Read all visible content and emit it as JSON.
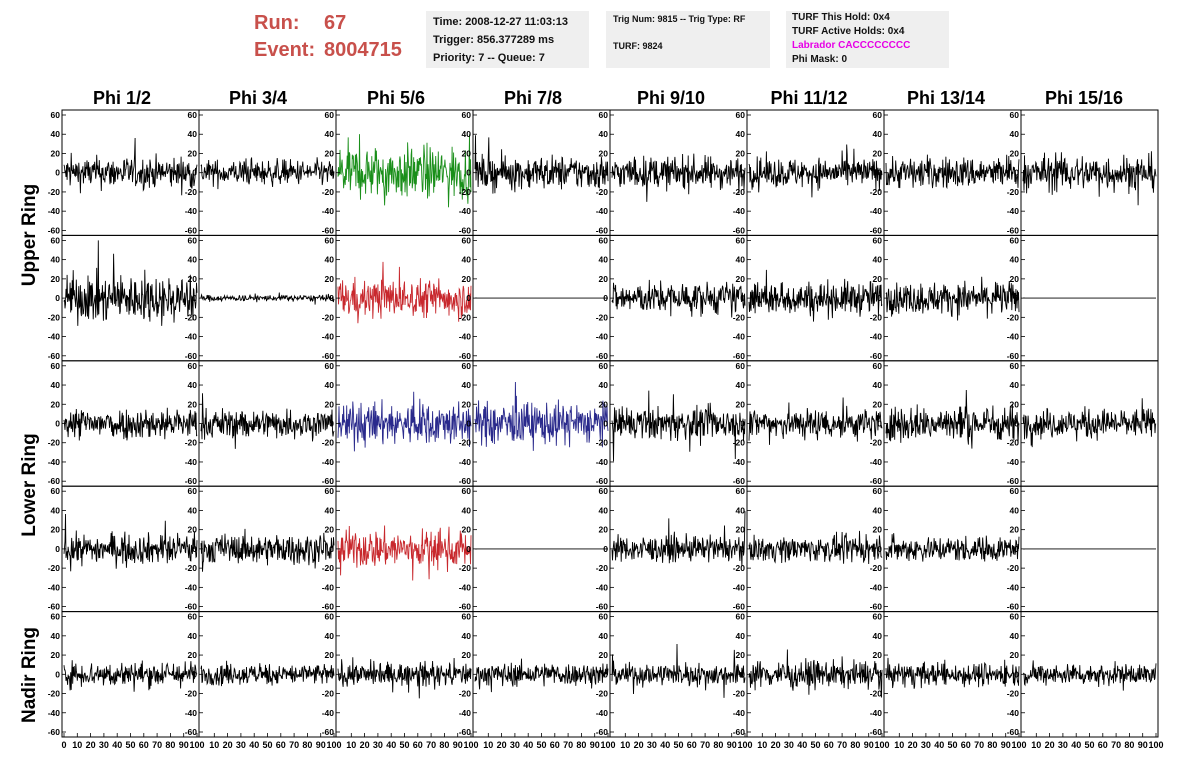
{
  "header": {
    "run_label": "Run:",
    "run_value": "67",
    "event_label": "Event:",
    "event_value": "8004715",
    "time": "Time: 2008-12-27 11:03:13",
    "trigger": "Trigger: 856.377289 ms",
    "priority": "Priority: 7 -- Queue: 7",
    "trig_num": "Trig Num: 9815 -- Trig Type: RF",
    "turf": "TURF: 9824",
    "turf_this_hold": "TURF This Hold: 0x4",
    "turf_active_holds": "TURF Active Holds: 0x4",
    "labrador": "Labrador CACCCCCCCC",
    "phi_mask": "Phi Mask: 0"
  },
  "colors": {
    "run_text": "#c8504b",
    "info_bg": "#efefef",
    "labrador": "#e600e6",
    "trace_black": "#000000",
    "trace_green": "#1a8f1a",
    "trace_red": "#c8282d",
    "trace_blue": "#2a2a8c"
  },
  "phi_columns": [
    "Phi 1/2",
    "Phi 3/4",
    "Phi 5/6",
    "Phi 7/8",
    "Phi 9/10",
    "Phi 11/12",
    "Phi 13/14",
    "Phi 15/16"
  ],
  "ring_labels": [
    "Upper Ring",
    "Lower Ring",
    "Nadir Ring"
  ],
  "y_ticks": [
    "60",
    "40",
    "20",
    "0",
    "-20",
    "-40",
    "-60"
  ],
  "x_ticks_first": [
    "0",
    "10",
    "20",
    "30",
    "40",
    "50",
    "60",
    "70",
    "80",
    "90",
    "100"
  ],
  "x_ticks_other": [
    "10",
    "20",
    "30",
    "40",
    "50",
    "60",
    "70",
    "80",
    "90",
    "100"
  ],
  "chart_data": {
    "type": "line",
    "description_of_axes": "Each panel is a waveform trace; x from 0 to 100, y from -60 to 60",
    "xlim": [
      0,
      100
    ],
    "ylim": [
      -60,
      60
    ],
    "rows": [
      {
        "ring": "Upper Ring",
        "channels": [
          {
            "color": "black",
            "amp": 15,
            "flat": false
          },
          {
            "color": "black",
            "amp": 12,
            "flat": false
          },
          {
            "color": "green",
            "amp": 25,
            "flat": false
          },
          {
            "color": "black",
            "amp": 16,
            "flat": false
          },
          {
            "color": "black",
            "amp": 15,
            "flat": false
          },
          {
            "color": "black",
            "amp": 14,
            "flat": false
          },
          {
            "color": "black",
            "amp": 15,
            "flat": false
          },
          {
            "color": "black",
            "amp": 17,
            "flat": false
          }
        ]
      },
      {
        "ring": "Upper Ring",
        "channels": [
          {
            "color": "black",
            "amp": 22,
            "flat": false
          },
          {
            "color": "black",
            "amp": 3,
            "flat": false
          },
          {
            "color": "red",
            "amp": 18,
            "flat": false
          },
          {
            "color": "black",
            "amp": 0,
            "flat": true
          },
          {
            "color": "black",
            "amp": 15,
            "flat": false
          },
          {
            "color": "black",
            "amp": 16,
            "flat": false
          },
          {
            "color": "black",
            "amp": 15,
            "flat": false
          },
          {
            "color": "black",
            "amp": 0,
            "flat": true
          }
        ]
      },
      {
        "ring": "Lower Ring",
        "channels": [
          {
            "color": "black",
            "amp": 15,
            "flat": false
          },
          {
            "color": "black",
            "amp": 14,
            "flat": false
          },
          {
            "color": "blue",
            "amp": 20,
            "flat": false
          },
          {
            "color": "blue",
            "amp": 20,
            "flat": false
          },
          {
            "color": "black",
            "amp": 15,
            "flat": false
          },
          {
            "color": "black",
            "amp": 15,
            "flat": false
          },
          {
            "color": "black",
            "amp": 17,
            "flat": false
          },
          {
            "color": "black",
            "amp": 14,
            "flat": false
          }
        ]
      },
      {
        "ring": "Lower Ring",
        "channels": [
          {
            "color": "black",
            "amp": 14,
            "flat": false
          },
          {
            "color": "black",
            "amp": 14,
            "flat": false
          },
          {
            "color": "red",
            "amp": 18,
            "flat": false
          },
          {
            "color": "black",
            "amp": 0,
            "flat": true
          },
          {
            "color": "black",
            "amp": 12,
            "flat": false
          },
          {
            "color": "black",
            "amp": 12,
            "flat": false
          },
          {
            "color": "black",
            "amp": 12,
            "flat": false
          },
          {
            "color": "black",
            "amp": 0,
            "flat": true
          }
        ]
      },
      {
        "ring": "Nadir Ring",
        "channels": [
          {
            "color": "black",
            "amp": 12,
            "flat": false
          },
          {
            "color": "black",
            "amp": 10,
            "flat": false
          },
          {
            "color": "black",
            "amp": 11,
            "flat": false
          },
          {
            "color": "black",
            "amp": 11,
            "flat": false
          },
          {
            "color": "black",
            "amp": 11,
            "flat": false
          },
          {
            "color": "black",
            "amp": 13,
            "flat": false
          },
          {
            "color": "black",
            "amp": 11,
            "flat": false
          },
          {
            "color": "black",
            "amp": 10,
            "flat": false
          }
        ]
      }
    ]
  }
}
